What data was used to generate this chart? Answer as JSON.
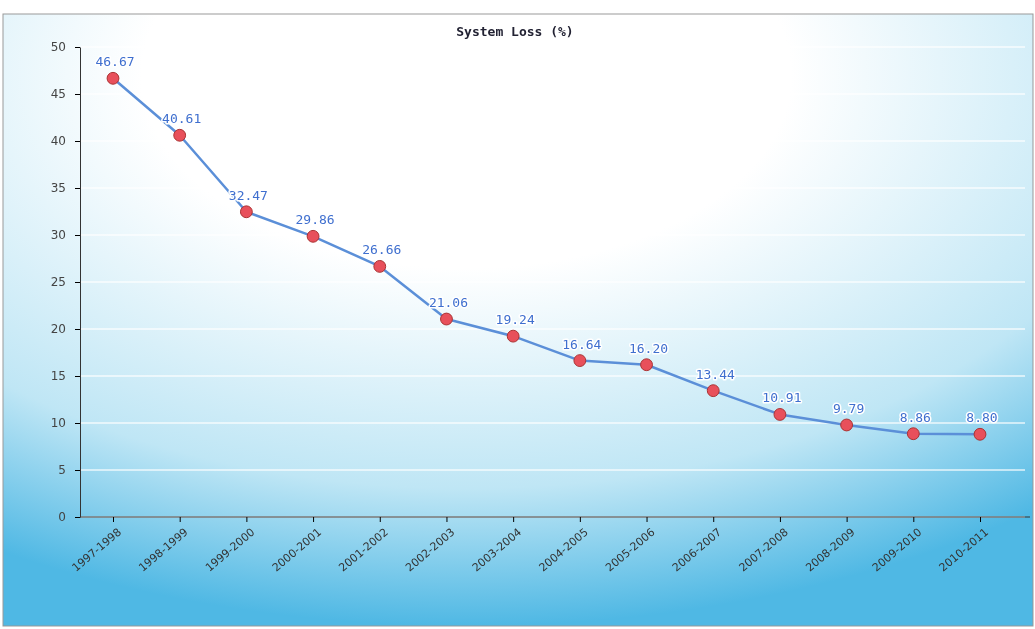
{
  "chart_data": {
    "type": "line",
    "title": "System Loss (%)",
    "categories": [
      "1997-1998",
      "1998-1999",
      "1999-2000",
      "2000-2001",
      "2001-2002",
      "2002-2003",
      "2003-2004",
      "2004-2005",
      "2005-2006",
      "2006-2007",
      "2007-2008",
      "2008-2009",
      "2009-2010",
      "2010-2011"
    ],
    "series": [
      {
        "color": "#5b8fd8",
        "values": [
          46.67,
          40.61,
          32.47,
          29.86,
          26.66,
          21.06,
          19.24,
          16.64,
          16.2,
          13.44,
          10.91,
          9.79,
          8.86,
          8.8
        ],
        "value_labels": [
          "46.67",
          "40.61",
          "32.47",
          "29.86",
          "26.66",
          "21.06",
          "19.24",
          "16.64",
          "16.20",
          "13.44",
          "10.91",
          "9.79",
          "8.86",
          "8.80"
        ]
      }
    ],
    "marker": "circle",
    "ylim": [
      0,
      50
    ],
    "yticks": [
      0,
      5,
      10,
      15,
      20,
      25,
      30,
      35,
      40,
      45,
      50
    ],
    "grid": "y"
  }
}
